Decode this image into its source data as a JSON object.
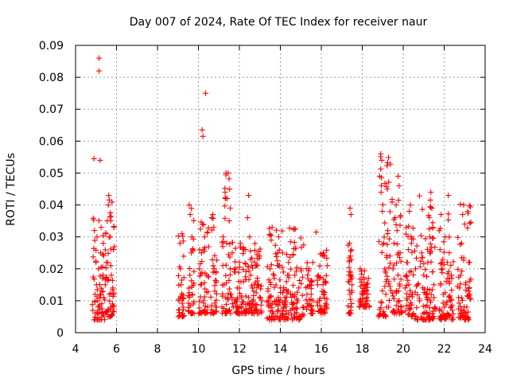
{
  "chart_data": {
    "type": "scatter",
    "title": "Day 007 of 2024, Rate Of TEC Index for receiver naur",
    "xlabel": "GPS time / hours",
    "ylabel": "ROTI / TECUs",
    "xlim": [
      4,
      24
    ],
    "ylim": [
      0,
      0.09
    ],
    "xticks": [
      4,
      6,
      8,
      10,
      12,
      14,
      16,
      18,
      20,
      22,
      24
    ],
    "xtick_labels": [
      "4",
      "6",
      "8",
      "10",
      "12",
      "14",
      "16",
      "18",
      "20",
      "22",
      "24"
    ],
    "yticks": [
      0,
      0.01,
      0.02,
      0.03,
      0.04,
      0.05,
      0.06,
      0.07,
      0.08,
      0.09
    ],
    "ytick_labels": [
      "0",
      "0.01",
      "0.02",
      "0.03",
      "0.04",
      "0.05",
      "0.06",
      "0.07",
      "0.08",
      "0.09"
    ],
    "grid": true,
    "marker": "+",
    "marker_color": "#ff0000",
    "series": [
      {
        "name": "ROTI",
        "points": [
          [
            4.9,
            0.0545
          ],
          [
            5.2,
            0.054
          ],
          [
            5.15,
            0.086
          ],
          [
            5.15,
            0.082
          ],
          [
            4.95,
            0.012
          ],
          [
            5.02,
            0.015
          ],
          [
            5.08,
            0.01
          ],
          [
            5.12,
            0.02
          ],
          [
            5.18,
            0.008
          ],
          [
            5.22,
            0.025
          ],
          [
            5.28,
            0.013
          ],
          [
            5.05,
            0.03
          ],
          [
            5.25,
            0.033
          ],
          [
            5.32,
            0.017
          ],
          [
            5.38,
            0.011
          ],
          [
            4.92,
            0.032
          ],
          [
            5.0,
            0.022
          ],
          [
            5.1,
            0.006
          ],
          [
            5.35,
            0.028
          ],
          [
            5.18,
            0.004
          ],
          [
            5.45,
            0.015
          ],
          [
            5.5,
            0.022
          ],
          [
            5.55,
            0.035
          ],
          [
            5.6,
            0.04
          ],
          [
            5.62,
            0.043
          ],
          [
            5.65,
            0.012
          ],
          [
            5.7,
            0.03
          ],
          [
            5.75,
            0.018
          ],
          [
            5.8,
            0.009
          ],
          [
            5.85,
            0.026
          ],
          [
            5.88,
            0.033
          ],
          [
            5.58,
            0.007
          ],
          [
            5.72,
            0.021
          ],
          [
            5.48,
            0.031
          ],
          [
            5.66,
            0.005
          ],
          [
            5.82,
            0.014
          ],
          [
            9.05,
            0.01
          ],
          [
            9.1,
            0.028
          ],
          [
            9.15,
            0.015
          ],
          [
            9.2,
            0.031
          ],
          [
            9.25,
            0.008
          ],
          [
            9.12,
            0.02
          ],
          [
            9.22,
            0.006
          ],
          [
            9.55,
            0.04
          ],
          [
            9.6,
            0.037
          ],
          [
            9.65,
            0.025
          ],
          [
            9.7,
            0.012
          ],
          [
            9.58,
            0.018
          ],
          [
            9.68,
            0.03
          ],
          [
            9.75,
            0.009
          ],
          [
            10.05,
            0.02
          ],
          [
            10.1,
            0.015
          ],
          [
            10.15,
            0.025
          ],
          [
            10.18,
            0.0635
          ],
          [
            10.22,
            0.0615
          ],
          [
            10.35,
            0.075
          ],
          [
            10.25,
            0.01
          ],
          [
            10.3,
            0.03
          ],
          [
            10.4,
            0.018
          ],
          [
            10.45,
            0.008
          ],
          [
            10.2,
            0.034
          ],
          [
            10.65,
            0.036
          ],
          [
            10.7,
            0.037
          ],
          [
            10.75,
            0.033
          ],
          [
            10.72,
            0.021
          ],
          [
            10.8,
            0.013
          ],
          [
            10.85,
            0.008
          ],
          [
            11.2,
            0.03
          ],
          [
            11.3,
            0.044
          ],
          [
            11.35,
            0.05
          ],
          [
            11.45,
            0.05
          ],
          [
            11.4,
            0.042
          ],
          [
            11.5,
            0.035
          ],
          [
            11.55,
            0.02
          ],
          [
            11.6,
            0.012
          ],
          [
            11.25,
            0.015
          ],
          [
            11.65,
            0.025
          ],
          [
            11.7,
            0.008
          ],
          [
            11.38,
            0.028
          ],
          [
            11.8,
            0.019
          ],
          [
            11.9,
            0.014
          ],
          [
            12.0,
            0.022
          ],
          [
            12.1,
            0.011
          ],
          [
            12.2,
            0.016
          ],
          [
            12.3,
            0.026
          ],
          [
            12.4,
            0.036
          ],
          [
            12.45,
            0.043
          ],
          [
            12.5,
            0.03
          ],
          [
            12.55,
            0.018
          ],
          [
            12.6,
            0.008
          ],
          [
            12.7,
            0.013
          ],
          [
            12.8,
            0.021
          ],
          [
            12.9,
            0.015
          ],
          [
            13.0,
            0.024
          ],
          [
            13.1,
            0.01
          ],
          [
            12.85,
            0.007
          ],
          [
            12.05,
            0.028
          ],
          [
            13.4,
            0.013
          ],
          [
            13.5,
            0.02
          ],
          [
            13.55,
            0.029
          ],
          [
            13.6,
            0.033
          ],
          [
            13.7,
            0.017
          ],
          [
            13.8,
            0.01
          ],
          [
            13.9,
            0.021
          ],
          [
            14.0,
            0.014
          ],
          [
            14.1,
            0.025
          ],
          [
            14.2,
            0.009
          ],
          [
            14.3,
            0.016
          ],
          [
            14.4,
            0.022
          ],
          [
            14.5,
            0.007
          ],
          [
            14.6,
            0.012
          ],
          [
            14.7,
            0.018
          ],
          [
            14.8,
            0.005
          ],
          [
            14.9,
            0.014
          ],
          [
            15.0,
            0.02
          ],
          [
            15.1,
            0.008
          ],
          [
            13.65,
            0.006
          ],
          [
            14.15,
            0.019
          ],
          [
            15.3,
            0.012
          ],
          [
            15.4,
            0.02
          ],
          [
            15.45,
            0.015
          ],
          [
            15.5,
            0.007
          ],
          [
            15.6,
            0.01
          ],
          [
            15.75,
            0.0315
          ],
          [
            15.85,
            0.018
          ],
          [
            15.9,
            0.01
          ],
          [
            16.1,
            0.025
          ],
          [
            16.2,
            0.016
          ],
          [
            16.25,
            0.008
          ],
          [
            16.3,
            0.021
          ],
          [
            16.15,
            0.012
          ],
          [
            17.4,
            0.039
          ],
          [
            17.45,
            0.037
          ],
          [
            17.38,
            0.028
          ],
          [
            17.42,
            0.024
          ],
          [
            17.35,
            0.018
          ],
          [
            17.4,
            0.012
          ],
          [
            17.45,
            0.008
          ],
          [
            17.5,
            0.015
          ],
          [
            17.9,
            0.02
          ],
          [
            18.0,
            0.013
          ],
          [
            18.1,
            0.009
          ],
          [
            18.2,
            0.015
          ],
          [
            18.3,
            0.017
          ],
          [
            18.25,
            0.01
          ],
          [
            18.9,
            0.056
          ],
          [
            18.95,
            0.054
          ],
          [
            18.85,
            0.049
          ],
          [
            18.92,
            0.044
          ],
          [
            18.98,
            0.038
          ],
          [
            19.05,
            0.028
          ],
          [
            19.1,
            0.02
          ],
          [
            19.15,
            0.012
          ],
          [
            19.2,
            0.008
          ],
          [
            19.25,
            0.032
          ],
          [
            19.3,
            0.016
          ],
          [
            19.35,
            0.024
          ],
          [
            19.0,
            0.006
          ],
          [
            19.5,
            0.02
          ],
          [
            19.55,
            0.028
          ],
          [
            19.6,
            0.036
          ],
          [
            19.65,
            0.04
          ],
          [
            19.7,
            0.032
          ],
          [
            19.75,
            0.018
          ],
          [
            19.8,
            0.01
          ],
          [
            19.85,
            0.025
          ],
          [
            19.9,
            0.008
          ],
          [
            19.75,
            0.049
          ],
          [
            19.8,
            0.046
          ],
          [
            20.1,
            0.014
          ],
          [
            20.2,
            0.022
          ],
          [
            20.3,
            0.038
          ],
          [
            20.35,
            0.04
          ],
          [
            20.4,
            0.028
          ],
          [
            20.45,
            0.012
          ],
          [
            20.5,
            0.006
          ],
          [
            20.3,
            0.019
          ],
          [
            20.6,
            0.02
          ],
          [
            20.7,
            0.015
          ],
          [
            20.8,
            0.01
          ],
          [
            20.9,
            0.025
          ],
          [
            21.0,
            0.018
          ],
          [
            21.1,
            0.012
          ],
          [
            21.2,
            0.022
          ],
          [
            21.3,
            0.03
          ],
          [
            21.35,
            0.044
          ],
          [
            21.4,
            0.039
          ],
          [
            21.45,
            0.033
          ],
          [
            21.5,
            0.015
          ],
          [
            21.55,
            0.008
          ],
          [
            21.25,
            0.005
          ],
          [
            21.8,
            0.026
          ],
          [
            21.85,
            0.037
          ],
          [
            21.9,
            0.02
          ],
          [
            21.95,
            0.012
          ],
          [
            22.0,
            0.008
          ],
          [
            22.05,
            0.03
          ],
          [
            22.1,
            0.016
          ],
          [
            22.15,
            0.022
          ],
          [
            22.2,
            0.043
          ],
          [
            22.25,
            0.025
          ],
          [
            22.3,
            0.01
          ],
          [
            22.35,
            0.018
          ],
          [
            22.4,
            0.007
          ],
          [
            22.15,
            0.005
          ],
          [
            22.7,
            0.011
          ],
          [
            22.8,
            0.018
          ],
          [
            22.85,
            0.028
          ],
          [
            22.9,
            0.037
          ],
          [
            22.95,
            0.04
          ],
          [
            23.0,
            0.034
          ],
          [
            23.05,
            0.015
          ],
          [
            23.1,
            0.008
          ],
          [
            23.15,
            0.038
          ],
          [
            23.2,
            0.022
          ],
          [
            23.25,
            0.012
          ],
          [
            23.0,
            0.005
          ],
          [
            22.75,
            0.014
          ]
        ],
        "clusters": [
          {
            "x": [
              4.82,
              5.42
            ],
            "y": [
              0.004,
              0.036
            ]
          },
          {
            "x": [
              5.42,
              5.92
            ],
            "y": [
              0.005,
              0.043
            ]
          },
          {
            "x": [
              9.0,
              9.3
            ],
            "y": [
              0.005,
              0.031
            ]
          },
          {
            "x": [
              9.5,
              9.8
            ],
            "y": [
              0.006,
              0.04
            ]
          },
          {
            "x": [
              10.0,
              10.5
            ],
            "y": [
              0.006,
              0.035
            ]
          },
          {
            "x": [
              10.6,
              10.9
            ],
            "y": [
              0.006,
              0.037
            ]
          },
          {
            "x": [
              11.15,
              11.7
            ],
            "y": [
              0.006,
              0.05
            ]
          },
          {
            "x": [
              11.75,
              13.15
            ],
            "y": [
              0.006,
              0.03
            ]
          },
          {
            "x": [
              13.35,
              15.15
            ],
            "y": [
              0.004,
              0.033
            ]
          },
          {
            "x": [
              15.25,
              15.6
            ],
            "y": [
              0.006,
              0.022
            ]
          },
          {
            "x": [
              15.8,
              16.3
            ],
            "y": [
              0.006,
              0.026
            ]
          },
          {
            "x": [
              17.3,
              17.5
            ],
            "y": [
              0.006,
              0.03
            ]
          },
          {
            "x": [
              17.85,
              18.35
            ],
            "y": [
              0.008,
              0.02
            ]
          },
          {
            "x": [
              18.8,
              19.4
            ],
            "y": [
              0.005,
              0.056
            ]
          },
          {
            "x": [
              19.45,
              19.95
            ],
            "y": [
              0.006,
              0.049
            ]
          },
          {
            "x": [
              20.05,
              20.5
            ],
            "y": [
              0.005,
              0.04
            ]
          },
          {
            "x": [
              20.55,
              21.6
            ],
            "y": [
              0.004,
              0.044
            ]
          },
          {
            "x": [
              21.75,
              22.45
            ],
            "y": [
              0.004,
              0.043
            ]
          },
          {
            "x": [
              22.65,
              23.3
            ],
            "y": [
              0.004,
              0.041
            ]
          }
        ]
      }
    ]
  }
}
